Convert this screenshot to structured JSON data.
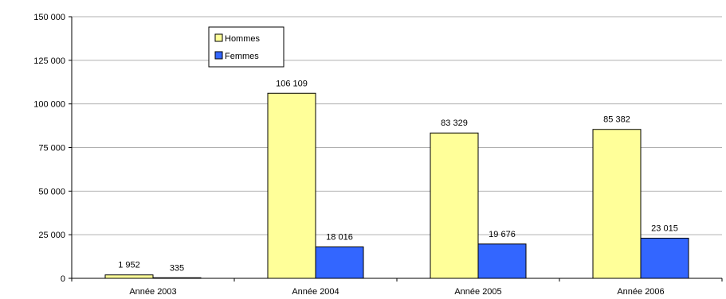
{
  "chart_data": {
    "type": "bar",
    "categories": [
      "Année 2003",
      "Année 2004",
      "Année 2005",
      "Année 2006"
    ],
    "series": [
      {
        "name": "Hommes",
        "values": [
          1952,
          106109,
          83329,
          85382
        ],
        "labels": [
          "1 952",
          "106 109",
          "83 329",
          "85 382"
        ],
        "color": "#FFFF99"
      },
      {
        "name": "Femmes",
        "values": [
          335,
          18016,
          19676,
          23015
        ],
        "labels": [
          "335",
          "18 016",
          "19 676",
          "23 015"
        ],
        "color": "#3366FF"
      }
    ],
    "ylim": [
      0,
      150000
    ],
    "yticks": [
      0,
      25000,
      50000,
      75000,
      100000,
      125000,
      150000
    ],
    "ytick_labels": [
      "0",
      "25 000",
      "50 000",
      "75 000",
      "100 000",
      "125 000",
      "150 000"
    ],
    "grid": true,
    "legend": "top-left"
  }
}
